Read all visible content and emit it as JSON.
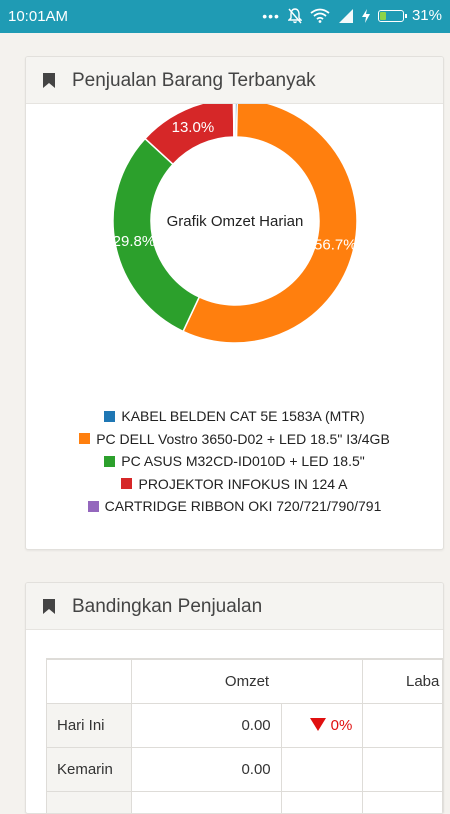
{
  "status_bar": {
    "time": "10:01AM",
    "battery": "31%",
    "battery_level": 0.31
  },
  "card1": {
    "title": "Penjualan Barang Terbanyak",
    "chart_data": {
      "type": "pie",
      "center_label": "Grafik Omzet Harian",
      "slices": [
        {
          "name": "KABEL BELDEN CAT 5E 1583A (MTR)",
          "value": 0.3,
          "color": "#1f77b4",
          "label": ""
        },
        {
          "name": "PC DELL Vostro 3650-D02 + LED 18.5\" I3/4GB",
          "value": 56.7,
          "color": "#ff7f0e",
          "label": "56.7%"
        },
        {
          "name": "PC ASUS M32CD-ID010D + LED 18.5\"",
          "value": 29.8,
          "color": "#2ca02c",
          "label": "29.8%"
        },
        {
          "name": "PROJEKTOR INFOKUS IN 124 A",
          "value": 13.0,
          "color": "#d62728",
          "label": "13.0%"
        },
        {
          "name": "CARTRIDGE RIBBON OKI 720/721/790/791",
          "value": 0.2,
          "color": "#9467bd",
          "label": ""
        }
      ],
      "legend_placement": "bottom"
    }
  },
  "card2": {
    "title": "Bandingkan Penjualan",
    "table": {
      "headers": [
        "",
        "Omzet",
        "Laba"
      ],
      "rows": [
        {
          "label": "Hari Ini",
          "omzet": "0.00",
          "pct": "0%"
        },
        {
          "label": "Kemarin",
          "omzet": "0.00",
          "pct": ""
        }
      ]
    }
  },
  "colors": {
    "status_bar": "#1f9bb4",
    "down": "#e01010"
  }
}
